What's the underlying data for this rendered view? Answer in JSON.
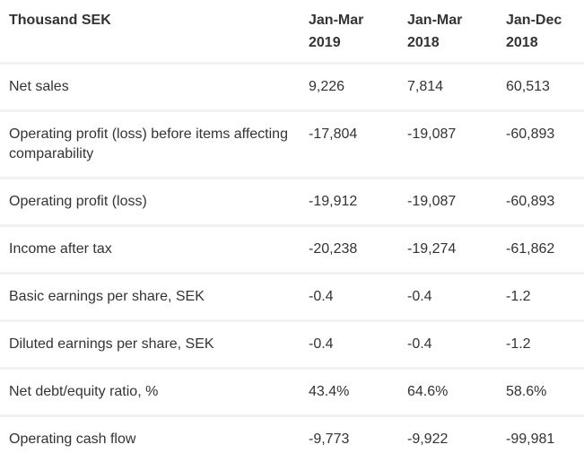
{
  "colors": {
    "text": "#333333",
    "separator": "#f2f2f2",
    "background": "#ffffff"
  },
  "table": {
    "header": {
      "label": "Thousand SEK",
      "columns": [
        "Jan-Mar 2019",
        "Jan-Mar 2018",
        "Jan-Dec 2018"
      ]
    },
    "rows": [
      {
        "label": "Net sales",
        "values": [
          "9,226",
          "7,814",
          "60,513"
        ]
      },
      {
        "label": "Operating profit (loss) before items affecting comparability",
        "values": [
          "-17,804",
          "-19,087",
          "-60,893"
        ]
      },
      {
        "label": "Operating profit (loss)",
        "values": [
          "-19,912",
          "-19,087",
          "-60,893"
        ]
      },
      {
        "label": "Income after tax",
        "values": [
          "-20,238",
          "-19,274",
          "-61,862"
        ]
      },
      {
        "label": "Basic earnings per share, SEK",
        "values": [
          "-0.4",
          "-0.4",
          "-1.2"
        ]
      },
      {
        "label": "Diluted earnings per share, SEK",
        "values": [
          "-0.4",
          "-0.4",
          "-1.2"
        ]
      },
      {
        "label": "Net debt/equity ratio, %",
        "values": [
          "43.4%",
          "64.6%",
          "58.6%"
        ]
      },
      {
        "label": "Operating cash flow",
        "values": [
          "-9,773",
          "-9,922",
          "-99,981"
        ]
      }
    ]
  }
}
